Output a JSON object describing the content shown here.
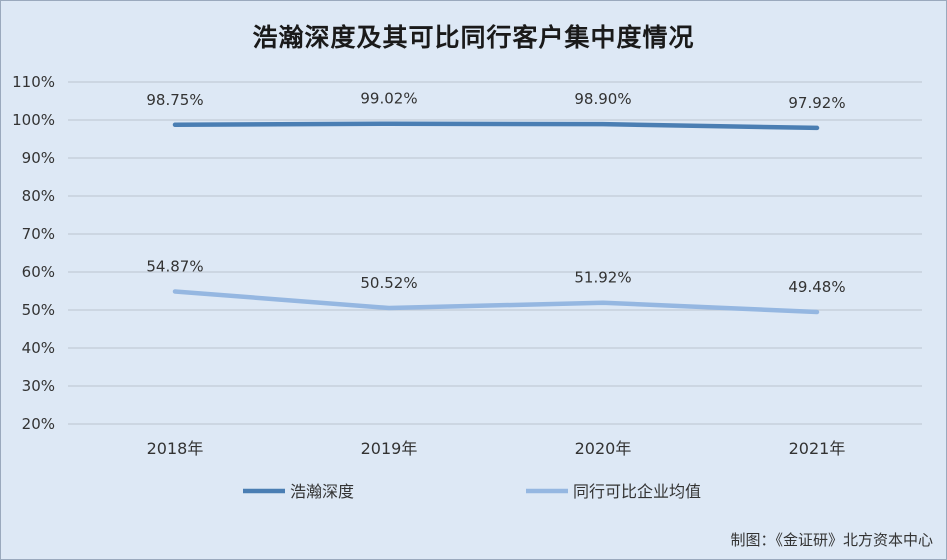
{
  "chart_data": {
    "type": "line",
    "title": "浩瀚深度及其可比同行客户集中度情况",
    "categories": [
      "2018年",
      "2019年",
      "2020年",
      "2021年"
    ],
    "series": [
      {
        "name": "浩瀚深度",
        "values": [
          98.75,
          99.02,
          98.9,
          97.92
        ],
        "labels": [
          "98.75%",
          "99.02%",
          "98.90%",
          "97.92%"
        ],
        "color": "#4a7eb3"
      },
      {
        "name": "同行可比企业均值",
        "values": [
          54.87,
          50.52,
          51.92,
          49.48
        ],
        "labels": [
          "54.87%",
          "50.52%",
          "51.92%",
          "49.48%"
        ],
        "color": "#95b7e1"
      }
    ],
    "ylim": [
      20,
      110
    ],
    "yticks": [
      20,
      30,
      40,
      50,
      60,
      70,
      80,
      90,
      100,
      110
    ],
    "ytick_labels": [
      "20%",
      "30%",
      "40%",
      "50%",
      "60%",
      "70%",
      "80%",
      "90%",
      "100%",
      "110%"
    ],
    "grid": true,
    "legend_position": "bottom"
  },
  "credit": "制图：《金证研》北方资本中心"
}
